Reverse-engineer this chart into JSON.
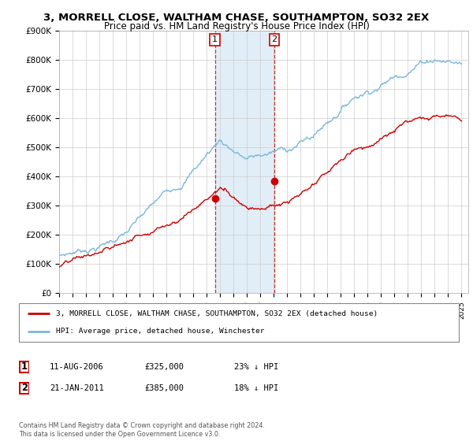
{
  "title": "3, MORRELL CLOSE, WALTHAM CHASE, SOUTHAMPTON, SO32 2EX",
  "subtitle": "Price paid vs. HM Land Registry's House Price Index (HPI)",
  "ylim": [
    0,
    900000
  ],
  "yticks": [
    0,
    100000,
    200000,
    300000,
    400000,
    500000,
    600000,
    700000,
    800000,
    900000
  ],
  "ytick_labels": [
    "£0",
    "£100K",
    "£200K",
    "£300K",
    "£400K",
    "£500K",
    "£600K",
    "£700K",
    "£800K",
    "£900K"
  ],
  "background_color": "#ffffff",
  "plot_bg_color": "#ffffff",
  "grid_color": "#cccccc",
  "hpi_color": "#7ab8d9",
  "price_color": "#cc0000",
  "sale1_date": 2006.62,
  "sale1_price": 325000,
  "sale2_date": 2011.05,
  "sale2_price": 385000,
  "shade_color": "#daeaf5",
  "legend_line1": "3, MORRELL CLOSE, WALTHAM CHASE, SOUTHAMPTON, SO32 2EX (detached house)",
  "legend_line2": "HPI: Average price, detached house, Winchester",
  "table_row1": [
    "1",
    "11-AUG-2006",
    "£325,000",
    "23% ↓ HPI"
  ],
  "table_row2": [
    "2",
    "21-JAN-2011",
    "£385,000",
    "18% ↓ HPI"
  ],
  "footer": "Contains HM Land Registry data © Crown copyright and database right 2024.\nThis data is licensed under the Open Government Licence v3.0.",
  "title_fontsize": 9.5,
  "subtitle_fontsize": 8.5
}
